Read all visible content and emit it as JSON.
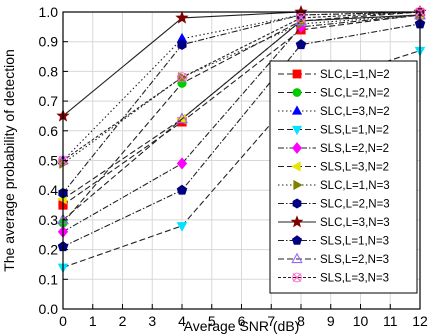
{
  "chart_data": {
    "type": "line",
    "title": "",
    "xlabel": "Average SNR (dB)",
    "ylabel": "The average probability of detection",
    "xlim": [
      0,
      12
    ],
    "ylim": [
      0.0,
      1.0
    ],
    "xticks": [
      "0",
      "1",
      "2",
      "3",
      "4",
      "5",
      "6",
      "7",
      "8",
      "9",
      "10",
      "11",
      "12"
    ],
    "yticks": [
      "0.0",
      "0.1",
      "0.2",
      "0.3",
      "0.4",
      "0.5",
      "0.6",
      "0.7",
      "0.8",
      "0.9",
      "1.0"
    ],
    "grid": true,
    "legend_position": "right",
    "x": [
      0,
      4,
      8,
      12
    ],
    "series": [
      {
        "name": "SLC,L=1,N=2",
        "values": [
          0.35,
          0.63,
          0.94,
          0.99
        ],
        "color": "#ff0000",
        "marker": "square",
        "dash": "6 3"
      },
      {
        "name": "SLC,L=2,N=2",
        "values": [
          0.29,
          0.76,
          0.97,
          1.0
        ],
        "color": "#00cc00",
        "marker": "circle",
        "dash": "6 3"
      },
      {
        "name": "SLC,L=3,N=2",
        "values": [
          0.5,
          0.91,
          0.99,
          1.0
        ],
        "color": "#0000ff",
        "marker": "triangle-up",
        "dash": "1.5 2.5"
      },
      {
        "name": "SLS,L=1,N=2",
        "values": [
          0.14,
          0.28,
          0.74,
          0.87
        ],
        "color": "#00e5ff",
        "marker": "triangle-down",
        "dash": "6 3"
      },
      {
        "name": "SLS,L=2,N=2",
        "values": [
          0.26,
          0.49,
          0.95,
          0.99
        ],
        "color": "#ff00ff",
        "marker": "diamond",
        "dash": "6 2 1.5 2"
      },
      {
        "name": "SLS,L=3,N=2",
        "values": [
          0.37,
          0.64,
          0.97,
          0.99
        ],
        "color": "#e6e600",
        "marker": "triangle-left",
        "dash": "6 3"
      },
      {
        "name": "SLC,L=1,N=3",
        "values": [
          0.49,
          0.78,
          0.96,
          0.99
        ],
        "color": "#808000",
        "marker": "triangle-right",
        "dash": "1.5 2.5"
      },
      {
        "name": "SLC,L=2,N=3",
        "values": [
          0.39,
          0.89,
          0.99,
          1.0
        ],
        "color": "#000080",
        "marker": "hexagon",
        "dash": "6 2 1.5 2"
      },
      {
        "name": "SLC,L=3,N=3",
        "values": [
          0.65,
          0.98,
          1.0,
          1.0
        ],
        "color": "#800000",
        "marker": "star",
        "dash": ""
      },
      {
        "name": "SLS,L=1,N=3",
        "values": [
          0.21,
          0.4,
          0.89,
          0.96
        ],
        "color": "#000080",
        "marker": "pentagon",
        "dash": "6 2 1.5 2"
      },
      {
        "name": "SLS,L=2,N=3",
        "values": [
          0.3,
          0.64,
          0.97,
          0.99
        ],
        "color": "#9966ff",
        "marker": "triangle-up-open",
        "dash": "6 3"
      },
      {
        "name": "SLS,L=3,N=3",
        "values": [
          0.5,
          0.78,
          0.98,
          1.0
        ],
        "color": "#ff66cc",
        "marker": "x-open",
        "dash": "3 2"
      }
    ]
  }
}
